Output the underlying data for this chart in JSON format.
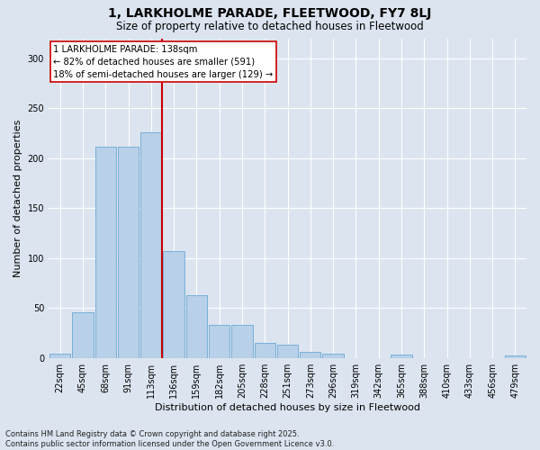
{
  "title1": "1, LARKHOLME PARADE, FLEETWOOD, FY7 8LJ",
  "title2": "Size of property relative to detached houses in Fleetwood",
  "xlabel": "Distribution of detached houses by size in Fleetwood",
  "ylabel": "Number of detached properties",
  "annotation_title": "1 LARKHOLME PARADE: 138sqm",
  "annotation_line1": "← 82% of detached houses are smaller (591)",
  "annotation_line2": "18% of semi-detached houses are larger (129) →",
  "footer1": "Contains HM Land Registry data © Crown copyright and database right 2025.",
  "footer2": "Contains public sector information licensed under the Open Government Licence v3.0.",
  "bar_categories": [
    "22sqm",
    "45sqm",
    "68sqm",
    "91sqm",
    "113sqm",
    "136sqm",
    "159sqm",
    "182sqm",
    "205sqm",
    "228sqm",
    "251sqm",
    "273sqm",
    "296sqm",
    "319sqm",
    "342sqm",
    "365sqm",
    "388sqm",
    "410sqm",
    "433sqm",
    "456sqm",
    "479sqm"
  ],
  "bar_values": [
    4,
    46,
    211,
    211,
    226,
    107,
    63,
    33,
    33,
    15,
    13,
    6,
    4,
    0,
    0,
    3,
    0,
    0,
    0,
    0,
    2
  ],
  "bar_color": "#b8d0e8",
  "bar_edge_color": "#6aaad4",
  "vline_color": "#cc0000",
  "vline_x": 4.5,
  "ylim": [
    0,
    320
  ],
  "yticks": [
    0,
    50,
    100,
    150,
    200,
    250,
    300
  ],
  "bg_color": "#dce4f0",
  "plot_bg_color": "#dce4f0",
  "grid_color": "#ffffff",
  "annotation_box_facecolor": "#ffffff",
  "annotation_box_edgecolor": "#cc0000",
  "title_fontsize": 10,
  "subtitle_fontsize": 8.5,
  "ylabel_fontsize": 8,
  "xlabel_fontsize": 8,
  "tick_fontsize": 7,
  "footer_fontsize": 6
}
